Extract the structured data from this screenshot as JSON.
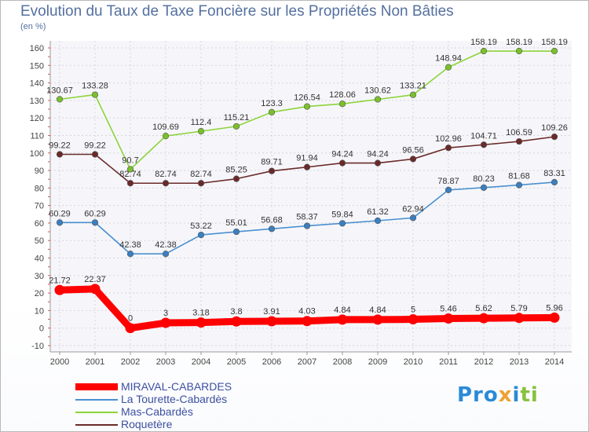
{
  "title": "Evolution du Taux de Taxe Foncière sur les Propriétés Non Bâties",
  "subtitle": "(en %)",
  "logo": {
    "part1": "Pro",
    "part2": "x",
    "part3": "i",
    "part4": "ti"
  },
  "chart_data": {
    "type": "line",
    "title": "Evolution du Taux de Taxe Foncière sur les Propriétés Non Bâties",
    "ylabel": "(en %)",
    "xlabel": "",
    "x": [
      2000,
      2001,
      2002,
      2003,
      2004,
      2005,
      2006,
      2007,
      2008,
      2009,
      2010,
      2011,
      2012,
      2013,
      2014
    ],
    "ylim": [
      -10,
      160
    ],
    "yticks": [
      -10,
      0,
      10,
      20,
      30,
      40,
      50,
      60,
      70,
      80,
      90,
      100,
      110,
      120,
      130,
      140,
      150,
      160
    ],
    "grid": true,
    "legend_position": "bottom-left",
    "series": [
      {
        "name": "Mas-Cabardès",
        "color": "#8cd43a",
        "marker": "#7ac02a",
        "values": [
          130.67,
          133.28,
          90.7,
          109.69,
          112.4,
          115.21,
          123.3,
          126.54,
          128.06,
          130.62,
          133.21,
          148.94,
          158.19,
          158.19,
          158.19
        ],
        "labels": [
          "130.67",
          "133.28",
          "90.7",
          "109.69",
          "112.4",
          "115.21",
          "123.3",
          "126.54",
          "128.06",
          "130.62",
          "133.21",
          "148.94",
          "158.19",
          "158.19",
          "158.19"
        ]
      },
      {
        "name": "Roquetère",
        "color": "#6a2a2a",
        "marker": "#6a2a2a",
        "values": [
          99.22,
          99.22,
          82.74,
          82.74,
          82.74,
          85.25,
          89.71,
          91.94,
          94.24,
          94.24,
          96.56,
          102.96,
          104.71,
          106.59,
          109.26
        ],
        "labels": [
          "99.22",
          "99.22",
          "82.74",
          "82.74",
          "82.74",
          "85.25",
          "89.71",
          "91.94",
          "94.24",
          "94.24",
          "96.56",
          "102.96",
          "104.71",
          "106.59",
          "109.26"
        ]
      },
      {
        "name": "La Tourette-Cabardès",
        "color": "#4a90d0",
        "marker": "#3a7fc0",
        "values": [
          60.29,
          60.29,
          42.38,
          42.38,
          53.22,
          55.01,
          56.68,
          58.37,
          59.84,
          61.32,
          62.94,
          78.87,
          80.23,
          81.68,
          83.31
        ],
        "labels": [
          "60.29",
          "60.29",
          "42.38",
          "42.38",
          "53.22",
          "55.01",
          "56.68",
          "58.37",
          "59.84",
          "61.32",
          "62.94",
          "78.87",
          "80.23",
          "81.68",
          "83.31"
        ]
      },
      {
        "name": "MIRAVAL-CABARDES",
        "color": "#ff0000",
        "marker": "#ff0000",
        "values": [
          21.72,
          22.37,
          0,
          3,
          3.18,
          3.8,
          3.91,
          4.03,
          4.84,
          4.84,
          5,
          5.46,
          5.62,
          5.79,
          5.96
        ],
        "labels": [
          "21.72",
          "22.37",
          "0",
          "3",
          "3.18",
          "3.8",
          "3.91",
          "4.03",
          "4.84",
          "4.84",
          "5",
          "5.46",
          "5.62",
          "5.79",
          "5.96"
        ]
      }
    ],
    "legend": [
      "MIRAVAL-CABARDES",
      "La Tourette-Cabardès",
      "Mas-Cabardès",
      "Roquetère"
    ]
  }
}
